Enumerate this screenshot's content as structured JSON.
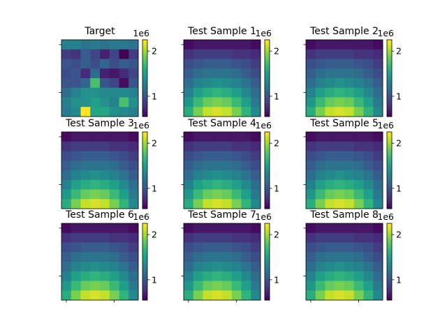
{
  "chart_data": {
    "type": "heatmap",
    "grid_size": [
      8,
      8
    ],
    "colormap": "viridis",
    "colorbar": {
      "vmin": 550000,
      "vmax": 2250000,
      "ticks": [
        1000000,
        2000000
      ],
      "tick_labels": [
        "1",
        "2"
      ],
      "offset_label": "1e6"
    },
    "panels": [
      {
        "title": "Target",
        "kind": "target"
      },
      {
        "title": "Test Sample 1",
        "kind": "sample"
      },
      {
        "title": "Test Sample 2",
        "kind": "sample"
      },
      {
        "title": "Test Sample 3",
        "kind": "sample"
      },
      {
        "title": "Test Sample 4",
        "kind": "sample"
      },
      {
        "title": "Test Sample 5",
        "kind": "sample"
      },
      {
        "title": "Test Sample 6",
        "kind": "sample"
      },
      {
        "title": "Test Sample 7",
        "kind": "sample"
      },
      {
        "title": "Test Sample 8",
        "kind": "sample"
      }
    ],
    "target_values": [
      [
        1300000,
        1300000,
        1200000,
        1250000,
        1200000,
        1250000,
        1250000,
        1200000
      ],
      [
        850000,
        800000,
        1050000,
        900000,
        700000,
        900000,
        500000,
        850000
      ],
      [
        1000000,
        950000,
        1050000,
        950000,
        1100000,
        950000,
        1050000,
        1000000
      ],
      [
        950000,
        1000000,
        750000,
        1150000,
        700000,
        650000,
        750000,
        900000
      ],
      [
        1000000,
        1000000,
        1100000,
        1750000,
        1000000,
        900000,
        600000,
        1000000
      ],
      [
        1150000,
        1300000,
        1400000,
        1400000,
        1350000,
        1350000,
        1350000,
        1300000
      ],
      [
        1300000,
        1400000,
        1400000,
        1500000,
        1400000,
        1300000,
        1750000,
        1400000
      ],
      [
        1250000,
        1350000,
        2250000,
        1550000,
        1550000,
        1400000,
        1350000,
        1300000
      ]
    ],
    "sample_values": [
      [
        600000,
        650000,
        650000,
        650000,
        650000,
        650000,
        650000,
        600000
      ],
      [
        800000,
        850000,
        850000,
        850000,
        850000,
        800000,
        800000,
        750000
      ],
      [
        950000,
        1000000,
        1050000,
        1050000,
        1050000,
        1000000,
        950000,
        850000
      ],
      [
        1050000,
        1150000,
        1200000,
        1200000,
        1200000,
        1150000,
        1050000,
        950000
      ],
      [
        1150000,
        1300000,
        1350000,
        1400000,
        1350000,
        1300000,
        1200000,
        1050000
      ],
      [
        1300000,
        1500000,
        1600000,
        1650000,
        1600000,
        1500000,
        1350000,
        1150000
      ],
      [
        1450000,
        1700000,
        1850000,
        1900000,
        1850000,
        1700000,
        1500000,
        1250000
      ],
      [
        1600000,
        1900000,
        2100000,
        2150000,
        2100000,
        1900000,
        1650000,
        1350000
      ]
    ]
  }
}
